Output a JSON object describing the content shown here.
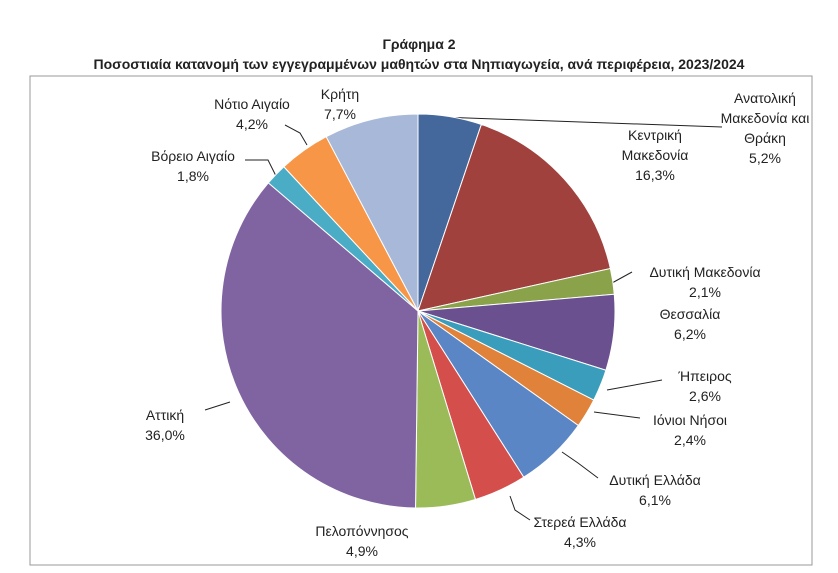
{
  "chart_data": {
    "type": "pie",
    "title": "Γράφημα 2",
    "subtitle": "Ποσοστιαία κατανομή των εγγεγραμμένων μαθητών στα Νηπιαγωγεία, ανά περιφέρεια, 2023/2024",
    "categories": [
      "Ανατολική Μακεδονία και Θράκη",
      "Κεντρική Μακεδονία",
      "Δυτική Μακεδονία",
      "Θεσσαλία",
      "Ήπειρος",
      "Ιόνιοι Νήσοι",
      "Δυτική Ελλάδα",
      "Στερεά Ελλάδα",
      "Πελοπόννησος",
      "Αττική",
      "Βόρειο Αιγαίο",
      "Νότιο Αιγαίο",
      "Κρήτη"
    ],
    "values": [
      5.2,
      16.3,
      2.1,
      6.2,
      2.6,
      2.4,
      6.1,
      4.3,
      4.9,
      36.0,
      1.8,
      4.2,
      7.7
    ],
    "value_labels": [
      "5,2%",
      "16,3%",
      "2,1%",
      "6,2%",
      "2,6%",
      "2,4%",
      "6,1%",
      "4,3%",
      "4,9%",
      "36,0%",
      "1,8%",
      "4,2%",
      "7,7%"
    ],
    "colors": [
      "#44689c",
      "#a0413e",
      "#8aa24a",
      "#6b5090",
      "#3a9dbb",
      "#e0823a",
      "#5b86c6",
      "#d44f4b",
      "#9bbb59",
      "#8064a2",
      "#4bacc6",
      "#f79646",
      "#a8b8d8"
    ]
  }
}
